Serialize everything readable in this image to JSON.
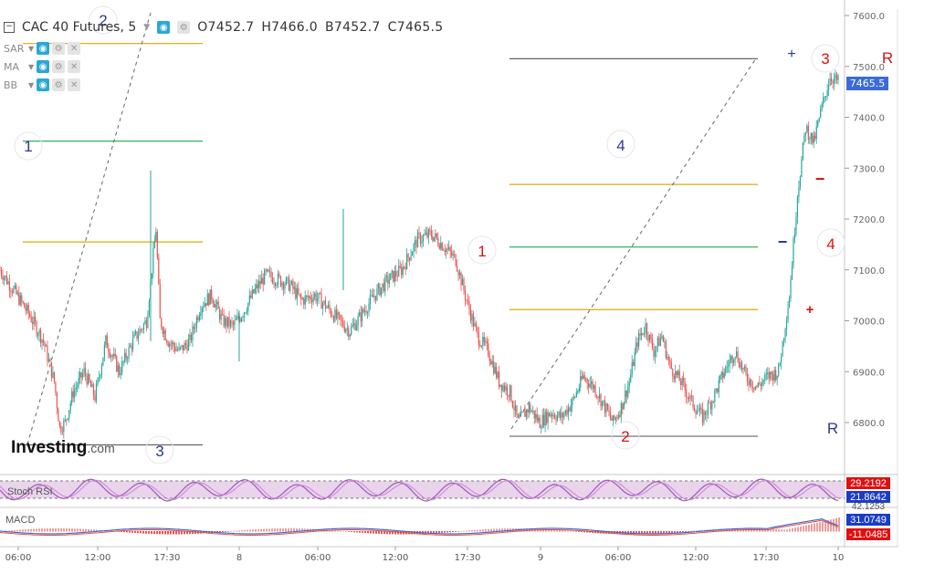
{
  "header": {
    "symbol": "CAC 40 Futures, 5",
    "open": "O7452.7",
    "high": "H7466.0",
    "low": "B7452.7",
    "close": "C7465.5"
  },
  "indicators": [
    "SAR",
    "MA",
    "BB"
  ],
  "watermark": {
    "brand": "Investing",
    "suffix": ".com"
  },
  "price_axis_labels": [
    "7600.0",
    "7500.0",
    "7400.0",
    "7300.0",
    "7200.0",
    "7100.0",
    "7000.0",
    "6900.0",
    "6800.0"
  ],
  "last_price": "7465.5",
  "stoch_rsi": {
    "label": "Stoch RSI",
    "value1": "29.2192",
    "value2": "21.8642"
  },
  "macd": {
    "label": "MACD",
    "value_top": "42.1253",
    "value1": "31.0749",
    "value2": "-11.0485"
  },
  "time_axis_labels": [
    "06:00",
    "12:00",
    "17:30",
    "8",
    "06:00",
    "12:00",
    "17:30",
    "9",
    "06:00",
    "12:00",
    "17:30",
    "10"
  ],
  "wave_labels_blue": [
    "1",
    "2",
    "3",
    "4",
    "R"
  ],
  "wave_labels_red": [
    "1",
    "2",
    "3",
    "4",
    "R"
  ],
  "sign_labels": [
    "+",
    "−",
    "−",
    "+"
  ],
  "colors": {
    "candle_up": "#26a69a",
    "candle_down": "#ef5350",
    "accent_blue": "#2a3a8c",
    "accent_red": "#e01010",
    "fib_orange": "#e0a800",
    "fib_green": "#21a84a",
    "stoch_fill": "#e9d4ec",
    "stoch_line": "#9b59b6",
    "macd_line": "#3a6bd9",
    "macd_signal": "#e74c3c",
    "last_price_bg": "#3a6bd9"
  },
  "chart_data": {
    "type": "candlestick",
    "title": "CAC 40 Futures, 5",
    "ylim": [
      6700,
      7620
    ],
    "y_ticks": [
      6800,
      6900,
      7000,
      7100,
      7200,
      7300,
      7400,
      7500,
      7600
    ],
    "close_path": [
      [
        0,
        7100
      ],
      [
        10,
        7060
      ],
      [
        22,
        7010
      ],
      [
        32,
        6960
      ],
      [
        40,
        6880
      ],
      [
        44,
        6790
      ],
      [
        48,
        6800
      ],
      [
        54,
        6860
      ],
      [
        62,
        6900
      ],
      [
        70,
        6850
      ],
      [
        78,
        6960
      ],
      [
        88,
        6900
      ],
      [
        98,
        6960
      ],
      [
        108,
        7000
      ],
      [
        115,
        7180
      ],
      [
        118,
        7000
      ],
      [
        124,
        6960
      ],
      [
        132,
        6940
      ],
      [
        140,
        6960
      ],
      [
        148,
        7030
      ],
      [
        156,
        7050
      ],
      [
        164,
        7000
      ],
      [
        172,
        6990
      ],
      [
        180,
        7020
      ],
      [
        188,
        7060
      ],
      [
        196,
        7090
      ],
      [
        206,
        7080
      ],
      [
        214,
        7070
      ],
      [
        222,
        7040
      ],
      [
        232,
        7050
      ],
      [
        240,
        7030
      ],
      [
        250,
        7000
      ],
      [
        258,
        6980
      ],
      [
        266,
        7010
      ],
      [
        276,
        7050
      ],
      [
        286,
        7080
      ],
      [
        296,
        7100
      ],
      [
        308,
        7160
      ],
      [
        318,
        7170
      ],
      [
        326,
        7150
      ],
      [
        336,
        7120
      ],
      [
        344,
        7040
      ],
      [
        352,
        6970
      ],
      [
        360,
        6940
      ],
      [
        368,
        6880
      ],
      [
        376,
        6860
      ],
      [
        382,
        6800
      ],
      [
        390,
        6830
      ],
      [
        398,
        6800
      ],
      [
        406,
        6820
      ],
      [
        414,
        6810
      ],
      [
        422,
        6840
      ],
      [
        430,
        6890
      ],
      [
        438,
        6870
      ],
      [
        446,
        6830
      ],
      [
        452,
        6800
      ],
      [
        458,
        6830
      ],
      [
        464,
        6880
      ],
      [
        470,
        6960
      ],
      [
        476,
        6990
      ],
      [
        482,
        6940
      ],
      [
        488,
        6970
      ],
      [
        494,
        6910
      ],
      [
        502,
        6880
      ],
      [
        510,
        6840
      ],
      [
        518,
        6810
      ],
      [
        526,
        6850
      ],
      [
        534,
        6900
      ],
      [
        542,
        6940
      ],
      [
        550,
        6890
      ],
      [
        558,
        6870
      ],
      [
        566,
        6890
      ],
      [
        574,
        6900
      ],
      [
        582,
        7050
      ],
      [
        588,
        7250
      ],
      [
        594,
        7380
      ],
      [
        600,
        7350
      ],
      [
        606,
        7420
      ],
      [
        612,
        7480
      ],
      [
        618,
        7470
      ]
    ],
    "fib_levels_left": [
      {
        "price": 7545,
        "color": "orange"
      },
      {
        "price": 7353,
        "color": "green"
      },
      {
        "price": 7155,
        "color": "orange"
      },
      {
        "price": 6756,
        "color": "gray"
      }
    ],
    "fib_levels_right": [
      {
        "price": 7515,
        "color": "gray"
      },
      {
        "price": 7268,
        "color": "orange"
      },
      {
        "price": 7145,
        "color": "green"
      },
      {
        "price": 7022,
        "color": "orange"
      },
      {
        "price": 6773,
        "color": "gray"
      }
    ],
    "stoch_rsi_values": [
      29.2192,
      21.8642
    ],
    "macd_values": [
      42.1253,
      31.0749,
      -11.0485
    ]
  }
}
